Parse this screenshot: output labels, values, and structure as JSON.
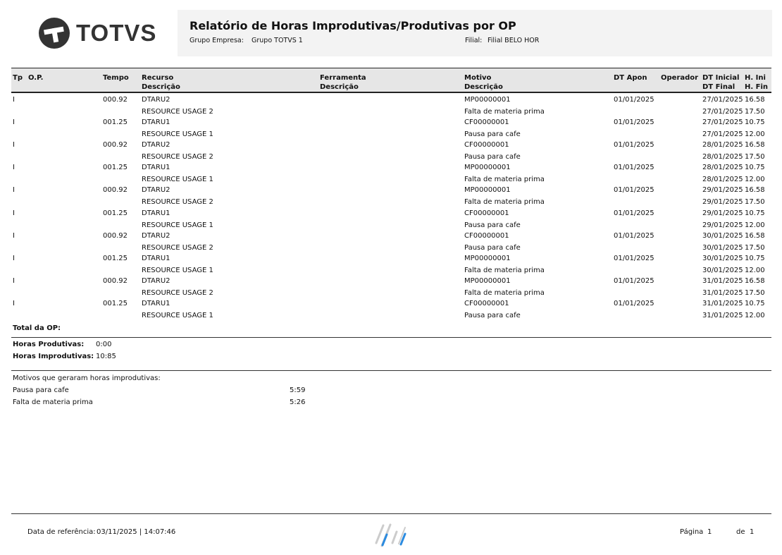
{
  "header": {
    "brand": "TOTVS",
    "title": "Relatório de Horas Improdutivas/Produtivas por OP",
    "grupo_label": "Grupo Empresa:",
    "grupo_value": "Grupo TOTVS 1",
    "filial_label": "Filial:",
    "filial_value": "Filial BELO HOR"
  },
  "columns": {
    "tp": "Tp",
    "op": "O.P.",
    "tempo": "Tempo",
    "recurso": "Recurso",
    "recurso_desc": "Descrição",
    "ferramenta": "Ferramenta",
    "ferramenta_desc": "Descrição",
    "motivo": "Motivo",
    "motivo_desc": "Descrição",
    "dt_apon": "DT Apon",
    "operador": "Operador",
    "dt_inicial": "DT Inicial",
    "dt_final": "DT Final",
    "h_ini": "H. Ini",
    "h_fin": "H. Fin"
  },
  "rows": [
    {
      "tp": "I",
      "tempo": "000.92",
      "recurso": "DTARU2",
      "recurso_desc": "RESOURCE USAGE 2",
      "motivo": "MP00000001",
      "motivo_desc": "Falta de materia prima",
      "dt_apon": "01/01/2025",
      "dt_inicial": "27/01/2025",
      "h_ini": "16.58",
      "dt_final": "27/01/2025",
      "h_fin": "17.50"
    },
    {
      "tp": "I",
      "tempo": "001.25",
      "recurso": "DTARU1",
      "recurso_desc": "RESOURCE USAGE 1",
      "motivo": "CF00000001",
      "motivo_desc": "Pausa para cafe",
      "dt_apon": "01/01/2025",
      "dt_inicial": "27/01/2025",
      "h_ini": "10.75",
      "dt_final": "27/01/2025",
      "h_fin": "12.00"
    },
    {
      "tp": "I",
      "tempo": "000.92",
      "recurso": "DTARU2",
      "recurso_desc": "RESOURCE USAGE 2",
      "motivo": "CF00000001",
      "motivo_desc": "Pausa para cafe",
      "dt_apon": "01/01/2025",
      "dt_inicial": "28/01/2025",
      "h_ini": "16.58",
      "dt_final": "28/01/2025",
      "h_fin": "17.50"
    },
    {
      "tp": "I",
      "tempo": "001.25",
      "recurso": "DTARU1",
      "recurso_desc": "RESOURCE USAGE 1",
      "motivo": "MP00000001",
      "motivo_desc": "Falta de materia prima",
      "dt_apon": "01/01/2025",
      "dt_inicial": "28/01/2025",
      "h_ini": "10.75",
      "dt_final": "28/01/2025",
      "h_fin": "12.00"
    },
    {
      "tp": "I",
      "tempo": "000.92",
      "recurso": "DTARU2",
      "recurso_desc": "RESOURCE USAGE 2",
      "motivo": "MP00000001",
      "motivo_desc": "Falta de materia prima",
      "dt_apon": "01/01/2025",
      "dt_inicial": "29/01/2025",
      "h_ini": "16.58",
      "dt_final": "29/01/2025",
      "h_fin": "17.50"
    },
    {
      "tp": "I",
      "tempo": "001.25",
      "recurso": "DTARU1",
      "recurso_desc": "RESOURCE USAGE 1",
      "motivo": "CF00000001",
      "motivo_desc": "Pausa para cafe",
      "dt_apon": "01/01/2025",
      "dt_inicial": "29/01/2025",
      "h_ini": "10.75",
      "dt_final": "29/01/2025",
      "h_fin": "12.00"
    },
    {
      "tp": "I",
      "tempo": "000.92",
      "recurso": "DTARU2",
      "recurso_desc": "RESOURCE USAGE 2",
      "motivo": "CF00000001",
      "motivo_desc": "Pausa para cafe",
      "dt_apon": "01/01/2025",
      "dt_inicial": "30/01/2025",
      "h_ini": "16.58",
      "dt_final": "30/01/2025",
      "h_fin": "17.50"
    },
    {
      "tp": "I",
      "tempo": "001.25",
      "recurso": "DTARU1",
      "recurso_desc": "RESOURCE USAGE 1",
      "motivo": "MP00000001",
      "motivo_desc": "Falta de materia prima",
      "dt_apon": "01/01/2025",
      "dt_inicial": "30/01/2025",
      "h_ini": "10.75",
      "dt_final": "30/01/2025",
      "h_fin": "12.00"
    },
    {
      "tp": "I",
      "tempo": "000.92",
      "recurso": "DTARU2",
      "recurso_desc": "RESOURCE USAGE 2",
      "motivo": "MP00000001",
      "motivo_desc": "Falta de materia prima",
      "dt_apon": "01/01/2025",
      "dt_inicial": "31/01/2025",
      "h_ini": "16.58",
      "dt_final": "31/01/2025",
      "h_fin": "17.50"
    },
    {
      "tp": "I",
      "tempo": "001.25",
      "recurso": "DTARU1",
      "recurso_desc": "RESOURCE USAGE 1",
      "motivo": "CF00000001",
      "motivo_desc": "Pausa para cafe",
      "dt_apon": "01/01/2025",
      "dt_inicial": "31/01/2025",
      "h_ini": "10.75",
      "dt_final": "31/01/2025",
      "h_fin": "12.00"
    }
  ],
  "totals": {
    "total_label": "Total da OP:",
    "produtivas_label": "Horas Produtivas:",
    "produtivas_value": "0:00",
    "improdutivas_label": "Horas Improdutivas:",
    "improdutivas_value": "10:85"
  },
  "motivos": {
    "title": "Motivos que geraram horas improdutivas:",
    "items": [
      {
        "label": "Pausa para cafe",
        "value": "5:59"
      },
      {
        "label": "Falta de materia prima",
        "value": "5:26"
      }
    ]
  },
  "footer": {
    "ref_label": "Data de referência:",
    "ref_value": "03/11/2025 | 14:07:46",
    "page_label": "Página",
    "page_value": "1",
    "of_label": "de",
    "of_value": "1"
  }
}
